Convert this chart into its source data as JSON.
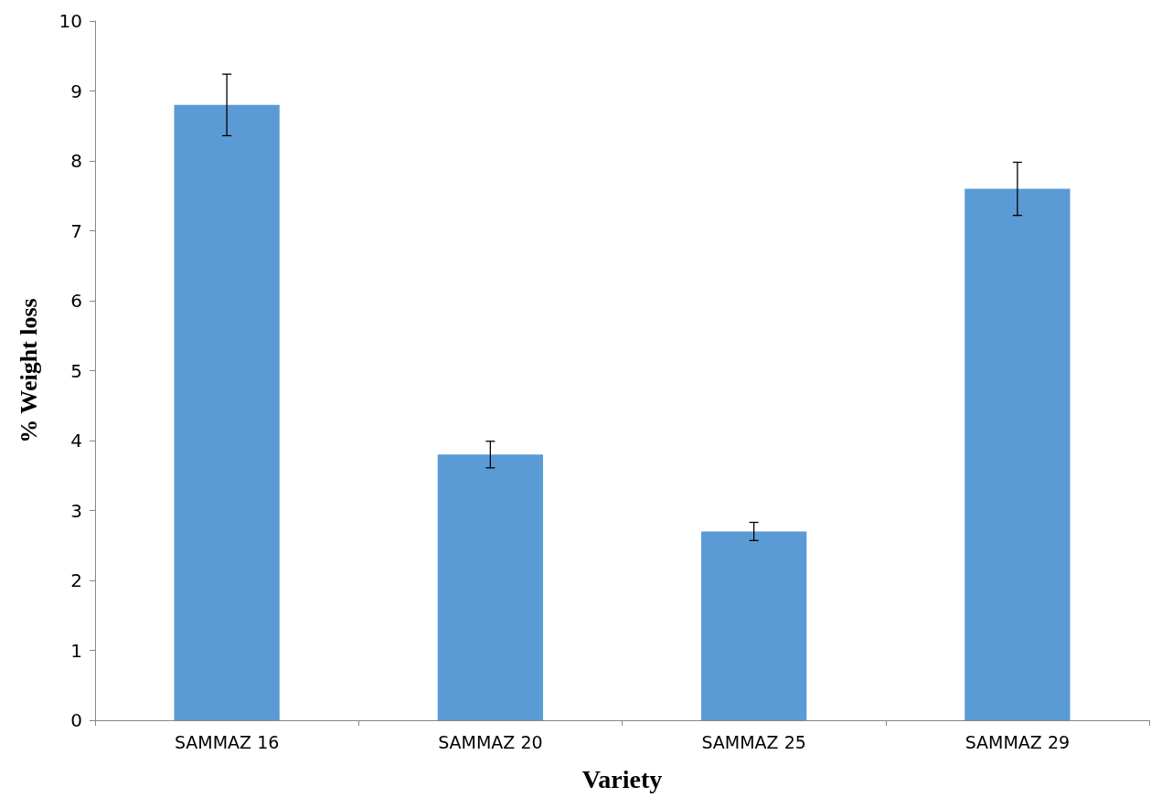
{
  "chart_data": {
    "type": "bar",
    "xlabel": "Variety",
    "ylabel": "% Weight loss",
    "categories": [
      "SAMMAZ 16",
      "SAMMAZ 20",
      "SAMMAZ 25",
      "SAMMAZ 29"
    ],
    "values": [
      8.8,
      3.8,
      2.7,
      7.6
    ],
    "errors": [
      0.44,
      0.19,
      0.13,
      0.38
    ],
    "color": "#5b9bd5",
    "ylim": [
      0,
      10
    ],
    "yticks": [
      0,
      1,
      2,
      3,
      4,
      5,
      6,
      7,
      8,
      9,
      10
    ],
    "grid": false
  }
}
